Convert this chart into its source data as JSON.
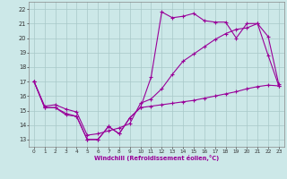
{
  "xlabel": "Windchill (Refroidissement éolien,°C)",
  "hours": [
    0,
    1,
    2,
    3,
    4,
    5,
    6,
    7,
    8,
    9,
    10,
    11,
    12,
    13,
    14,
    15,
    16,
    17,
    18,
    19,
    20,
    21,
    22,
    23
  ],
  "temp_line": [
    17.0,
    15.2,
    15.2,
    14.8,
    14.6,
    13.0,
    13.0,
    13.9,
    13.4,
    14.5,
    15.2,
    17.3,
    21.8,
    21.4,
    21.5,
    21.7,
    21.2,
    21.1,
    21.1,
    20.0,
    21.0,
    21.0,
    18.8,
    16.7
  ],
  "wc_line1": [
    17.0,
    15.2,
    15.2,
    14.7,
    14.6,
    13.0,
    13.0,
    13.9,
    13.4,
    14.5,
    15.2,
    15.3,
    15.4,
    15.5,
    15.6,
    15.7,
    15.85,
    16.0,
    16.15,
    16.3,
    16.5,
    16.65,
    16.75,
    16.7
  ],
  "wc_line2": [
    17.0,
    15.3,
    15.4,
    15.1,
    14.9,
    13.3,
    13.4,
    13.6,
    13.8,
    14.1,
    15.5,
    15.8,
    16.5,
    17.5,
    18.4,
    18.9,
    19.4,
    19.9,
    20.3,
    20.6,
    20.7,
    21.0,
    20.1,
    16.8
  ],
  "line_color": "#990099",
  "bg_color": "#cce8e8",
  "grid_color": "#a8c8c8",
  "ylim": [
    12.5,
    22.5
  ],
  "xlim": [
    -0.5,
    23.5
  ],
  "yticks": [
    13,
    14,
    15,
    16,
    17,
    18,
    19,
    20,
    21,
    22
  ],
  "xticks": [
    0,
    1,
    2,
    3,
    4,
    5,
    6,
    7,
    8,
    9,
    10,
    11,
    12,
    13,
    14,
    15,
    16,
    17,
    18,
    19,
    20,
    21,
    22,
    23
  ]
}
